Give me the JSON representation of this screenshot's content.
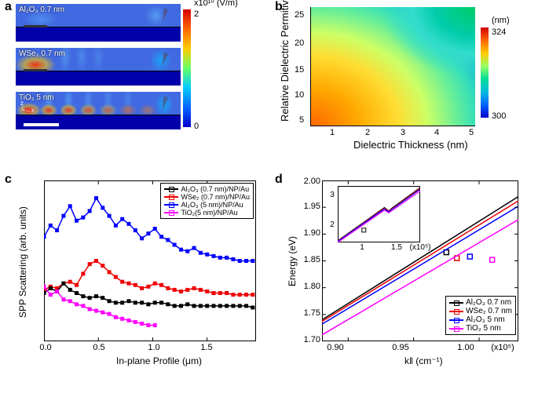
{
  "panels": {
    "a": {
      "label": "a",
      "cbar_title": "x10¹⁰ (V/m)",
      "cbar_max": "2",
      "cbar_min": "0"
    },
    "b": {
      "label": "b",
      "xlabel": "Dielectric Thickness (nm)",
      "ylabel": "Relative Dielectric Permitivity",
      "cbar_unit": "(nm)",
      "cbar_max": "324",
      "cbar_min": "300",
      "xticks": [
        "1",
        "2",
        "3",
        "4",
        "5"
      ],
      "yticks": [
        "5",
        "10",
        "15",
        "20",
        "25"
      ]
    },
    "c": {
      "label": "c",
      "xlabel": "In-plane Profile (μm)",
      "ylabel": "SPP Scattering (arb. units)",
      "xticks": [
        "0.0",
        "0.5",
        "1.0",
        "1.5"
      ],
      "legend": [
        "Al₂O₃ (0.7 nm)/NP/Au",
        "WSe₂ (0.7 nm)/NP/Au",
        "Al₂O₃ (5 nm)/NP/Au",
        "TiO₂(5 nm)/NP/Au"
      ]
    },
    "d": {
      "label": "d",
      "xlabel": "k‖ (cm⁻¹)",
      "ylabel": "Energy (eV)",
      "xunit": "(x10⁵)",
      "xticks": [
        "0.90",
        "0.95",
        "1.00"
      ],
      "yticks": [
        "1.70",
        "1.75",
        "1.80",
        "1.85",
        "1.90",
        "1.95",
        "2.00"
      ],
      "legend": [
        "Al₂O₃ 0.7 nm",
        "WSe₂ 0.7 nm",
        "Al₂O₃ 5 nm",
        "TiO₂ 5 nm"
      ],
      "inset_yticks": [
        "2",
        "3"
      ],
      "inset_xticks": [
        "1",
        "1.5"
      ],
      "inset_xunit": "(x10⁵)"
    }
  },
  "sim_labels": {
    "s1": "Al₂O₃ 0.7 nm",
    "s2": "WSe₂ 0.7 nm",
    "s3": "TiO₂ 5 nm"
  },
  "colors": {
    "black": "#000000",
    "red": "#ee0000",
    "blue": "#0000ff",
    "magenta": "#ff00ff"
  },
  "chart_c": {
    "xlim": [
      0.0,
      1.95
    ],
    "ylim": [
      0,
      10
    ],
    "series": {
      "blue": {
        "color": "#0000ff",
        "x": [
          0.0,
          0.06,
          0.12,
          0.18,
          0.24,
          0.3,
          0.36,
          0.42,
          0.48,
          0.54,
          0.6,
          0.66,
          0.72,
          0.78,
          0.84,
          0.9,
          0.96,
          1.02,
          1.08,
          1.14,
          1.2,
          1.26,
          1.32,
          1.38,
          1.44,
          1.5,
          1.56,
          1.62,
          1.68,
          1.74,
          1.8,
          1.86,
          1.92
        ],
        "y": [
          6.5,
          7.2,
          6.9,
          7.8,
          8.4,
          7.5,
          7.7,
          8.1,
          8.9,
          8.3,
          7.8,
          7.2,
          7.6,
          7.3,
          6.9,
          6.4,
          6.7,
          7.0,
          6.5,
          6.3,
          6.0,
          5.7,
          5.6,
          5.8,
          5.5,
          5.4,
          5.3,
          5.2,
          5.2,
          5.1,
          5.0,
          5.0,
          5.0
        ]
      },
      "red": {
        "color": "#ee0000",
        "x": [
          0.0,
          0.06,
          0.12,
          0.18,
          0.24,
          0.3,
          0.36,
          0.42,
          0.48,
          0.54,
          0.6,
          0.66,
          0.72,
          0.78,
          0.84,
          0.9,
          0.96,
          1.02,
          1.08,
          1.14,
          1.2,
          1.26,
          1.32,
          1.38,
          1.44,
          1.5,
          1.56,
          1.62,
          1.68,
          1.74,
          1.8,
          1.86,
          1.92
        ],
        "y": [
          3.2,
          3.4,
          3.3,
          3.6,
          3.7,
          3.5,
          4.2,
          4.8,
          5.0,
          4.7,
          4.3,
          4.0,
          3.7,
          3.6,
          3.5,
          3.3,
          3.4,
          3.6,
          3.5,
          3.3,
          3.2,
          3.1,
          3.2,
          3.3,
          3.2,
          3.1,
          3.0,
          3.0,
          3.0,
          2.9,
          2.9,
          2.9,
          2.9
        ]
      },
      "black": {
        "color": "#000000",
        "x": [
          0.0,
          0.06,
          0.12,
          0.18,
          0.24,
          0.3,
          0.36,
          0.42,
          0.48,
          0.54,
          0.6,
          0.66,
          0.72,
          0.78,
          0.84,
          0.9,
          0.96,
          1.02,
          1.08,
          1.14,
          1.2,
          1.26,
          1.32,
          1.38,
          1.44,
          1.5,
          1.56,
          1.62,
          1.68,
          1.74,
          1.8,
          1.86,
          1.92
        ],
        "y": [
          3.0,
          3.3,
          3.1,
          3.6,
          3.2,
          3.0,
          2.8,
          2.7,
          2.8,
          2.7,
          2.5,
          2.4,
          2.4,
          2.5,
          2.4,
          2.4,
          2.3,
          2.4,
          2.4,
          2.3,
          2.2,
          2.2,
          2.3,
          2.2,
          2.2,
          2.2,
          2.2,
          2.2,
          2.2,
          2.2,
          2.2,
          2.2,
          2.1
        ]
      },
      "magenta": {
        "color": "#ff00ff",
        "x": [
          0.0,
          0.06,
          0.12,
          0.18,
          0.24,
          0.3,
          0.36,
          0.42,
          0.48,
          0.54,
          0.6,
          0.66,
          0.72,
          0.78,
          0.84,
          0.9,
          0.96,
          1.02
        ],
        "y": [
          3.4,
          2.9,
          3.1,
          2.6,
          2.5,
          2.3,
          2.2,
          2.0,
          1.9,
          1.8,
          1.7,
          1.5,
          1.4,
          1.3,
          1.2,
          1.1,
          1.0,
          1.0
        ]
      }
    }
  },
  "chart_d": {
    "xlim": [
      0.88,
      1.03
    ],
    "ylim": [
      1.7,
      2.0
    ],
    "lines": {
      "black": {
        "color": "#000000",
        "pts": [
          [
            0.88,
            1.74
          ],
          [
            1.03,
            1.97
          ]
        ],
        "marker": [
          0.975,
          1.866
        ]
      },
      "red": {
        "color": "#ee0000",
        "pts": [
          [
            0.88,
            1.737
          ],
          [
            1.03,
            1.962
          ]
        ],
        "marker": [
          0.983,
          1.855
        ]
      },
      "blue": {
        "color": "#0000ff",
        "pts": [
          [
            0.88,
            1.732
          ],
          [
            1.03,
            1.952
          ]
        ],
        "marker": [
          0.993,
          1.858
        ]
      },
      "magenta": {
        "color": "#ff00ff",
        "pts": [
          [
            0.88,
            1.712
          ],
          [
            1.03,
            1.927
          ]
        ],
        "marker": [
          1.01,
          1.852
        ]
      }
    },
    "inset": {
      "xlim": [
        0.6,
        1.8
      ],
      "ylim": [
        1.5,
        3.2
      ],
      "lines": {
        "black": {
          "color": "#000000",
          "pts": [
            [
              0.6,
              1.55
            ],
            [
              1.28,
              2.55
            ],
            [
              1.34,
              2.45
            ],
            [
              1.4,
              2.55
            ],
            [
              1.8,
              3.15
            ]
          ]
        },
        "red": {
          "color": "#ee0000",
          "pts": [
            [
              0.6,
              1.54
            ],
            [
              1.28,
              2.53
            ],
            [
              1.34,
              2.44
            ],
            [
              1.4,
              2.53
            ],
            [
              1.8,
              3.13
            ]
          ]
        },
        "blue": {
          "color": "#0000ff",
          "pts": [
            [
              0.6,
              1.53
            ],
            [
              1.28,
              2.51
            ],
            [
              1.34,
              2.42
            ],
            [
              1.4,
              2.51
            ],
            [
              1.8,
              3.1
            ]
          ]
        },
        "magenta": {
          "color": "#ff00ff",
          "pts": [
            [
              0.6,
              1.5
            ],
            [
              1.28,
              2.47
            ],
            [
              1.34,
              2.39
            ],
            [
              1.4,
              2.47
            ],
            [
              1.8,
              3.05
            ]
          ]
        }
      },
      "marker": [
        0.98,
        1.87
      ]
    }
  }
}
